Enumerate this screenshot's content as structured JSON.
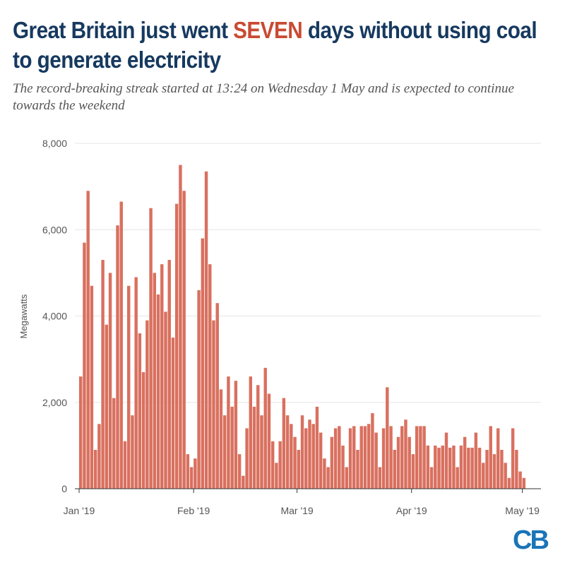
{
  "header": {
    "title_before": "Great Britain just went ",
    "title_highlight": "SEVEN",
    "title_after": " days without using coal to generate electricity",
    "subtitle": "The record-breaking streak started at 13:24 on Wednesday 1 May and is expected to continue towards the weekend"
  },
  "logo": "CB",
  "colors": {
    "bars": "#d9705f",
    "title": "#16395f",
    "highlight": "#c94a32",
    "logo": "#1a74b8",
    "grid": "#e6e6e6"
  },
  "chart_data": {
    "type": "bar",
    "ylabel": "Megawatts",
    "xlabel": "",
    "ylim": [
      0,
      8000
    ],
    "yticks": [
      "0",
      "2,000",
      "4,000",
      "6,000",
      "8,000"
    ],
    "ytick_values": [
      0,
      2000,
      4000,
      6000,
      8000
    ],
    "xlim": [
      "2019-01-01",
      "2019-05-09"
    ],
    "xticks": [
      {
        "date": "2019-01-01",
        "label": "Jan '19"
      },
      {
        "date": "2019-02-01",
        "label": "Feb '19"
      },
      {
        "date": "2019-03-01",
        "label": "Mar '19"
      },
      {
        "date": "2019-04-01",
        "label": "Apr '19"
      },
      {
        "date": "2019-05-01",
        "label": "May '19"
      }
    ],
    "grid": "horizontal",
    "series": [
      {
        "values": [
          [
            "2019-01-01",
            2600
          ],
          [
            "2019-01-02",
            5700
          ],
          [
            "2019-01-03",
            6900
          ],
          [
            "2019-01-04",
            4700
          ],
          [
            "2019-01-05",
            900
          ],
          [
            "2019-01-06",
            1500
          ],
          [
            "2019-01-07",
            5300
          ],
          [
            "2019-01-08",
            3800
          ],
          [
            "2019-01-09",
            5000
          ],
          [
            "2019-01-10",
            2100
          ],
          [
            "2019-01-11",
            6100
          ],
          [
            "2019-01-12",
            6650
          ],
          [
            "2019-01-13",
            1100
          ],
          [
            "2019-01-14",
            4700
          ],
          [
            "2019-01-15",
            1700
          ],
          [
            "2019-01-16",
            4900
          ],
          [
            "2019-01-17",
            3600
          ],
          [
            "2019-01-18",
            2700
          ],
          [
            "2019-01-19",
            3900
          ],
          [
            "2019-01-20",
            6500
          ],
          [
            "2019-01-21",
            5000
          ],
          [
            "2019-01-22",
            4500
          ],
          [
            "2019-01-23",
            5200
          ],
          [
            "2019-01-24",
            4100
          ],
          [
            "2019-01-25",
            5300
          ],
          [
            "2019-01-26",
            3500
          ],
          [
            "2019-01-27",
            6600
          ],
          [
            "2019-01-28",
            7500
          ],
          [
            "2019-01-29",
            6900
          ],
          [
            "2019-01-30",
            800
          ],
          [
            "2019-01-31",
            500
          ],
          [
            "2019-02-01",
            700
          ],
          [
            "2019-02-02",
            4600
          ],
          [
            "2019-02-03",
            5800
          ],
          [
            "2019-02-04",
            7350
          ],
          [
            "2019-02-05",
            5200
          ],
          [
            "2019-02-06",
            3900
          ],
          [
            "2019-02-07",
            4300
          ],
          [
            "2019-02-08",
            2300
          ],
          [
            "2019-02-09",
            1700
          ],
          [
            "2019-02-10",
            2600
          ],
          [
            "2019-02-11",
            1900
          ],
          [
            "2019-02-12",
            2500
          ],
          [
            "2019-02-13",
            800
          ],
          [
            "2019-02-14",
            300
          ],
          [
            "2019-02-15",
            1400
          ],
          [
            "2019-02-16",
            2600
          ],
          [
            "2019-02-17",
            1900
          ],
          [
            "2019-02-18",
            2400
          ],
          [
            "2019-02-19",
            1700
          ],
          [
            "2019-02-20",
            2800
          ],
          [
            "2019-02-21",
            2200
          ],
          [
            "2019-02-22",
            1100
          ],
          [
            "2019-02-23",
            600
          ],
          [
            "2019-02-24",
            1100
          ],
          [
            "2019-02-25",
            2100
          ],
          [
            "2019-02-26",
            1700
          ],
          [
            "2019-02-27",
            1500
          ],
          [
            "2019-02-28",
            1200
          ],
          [
            "2019-03-01",
            900
          ],
          [
            "2019-03-02",
            1700
          ],
          [
            "2019-03-03",
            1400
          ],
          [
            "2019-03-04",
            1600
          ],
          [
            "2019-03-05",
            1500
          ],
          [
            "2019-03-06",
            1900
          ],
          [
            "2019-03-07",
            1300
          ],
          [
            "2019-03-08",
            700
          ],
          [
            "2019-03-09",
            500
          ],
          [
            "2019-03-10",
            1200
          ],
          [
            "2019-03-11",
            1400
          ],
          [
            "2019-03-12",
            1450
          ],
          [
            "2019-03-13",
            1000
          ],
          [
            "2019-03-14",
            500
          ],
          [
            "2019-03-15",
            1400
          ],
          [
            "2019-03-16",
            1450
          ],
          [
            "2019-03-17",
            900
          ],
          [
            "2019-03-18",
            1450
          ],
          [
            "2019-03-19",
            1450
          ],
          [
            "2019-03-20",
            1500
          ],
          [
            "2019-03-21",
            1750
          ],
          [
            "2019-03-22",
            1300
          ],
          [
            "2019-03-23",
            500
          ],
          [
            "2019-03-24",
            1400
          ],
          [
            "2019-03-25",
            2350
          ],
          [
            "2019-03-26",
            1450
          ],
          [
            "2019-03-27",
            900
          ],
          [
            "2019-03-28",
            1200
          ],
          [
            "2019-03-29",
            1450
          ],
          [
            "2019-03-30",
            1600
          ],
          [
            "2019-03-31",
            1200
          ],
          [
            "2019-04-01",
            800
          ],
          [
            "2019-04-02",
            1450
          ],
          [
            "2019-04-03",
            1450
          ],
          [
            "2019-04-04",
            1450
          ],
          [
            "2019-04-05",
            1000
          ],
          [
            "2019-04-06",
            500
          ],
          [
            "2019-04-07",
            1000
          ],
          [
            "2019-04-08",
            950
          ],
          [
            "2019-04-09",
            1000
          ],
          [
            "2019-04-10",
            1300
          ],
          [
            "2019-04-11",
            950
          ],
          [
            "2019-04-12",
            1000
          ],
          [
            "2019-04-13",
            500
          ],
          [
            "2019-04-14",
            1000
          ],
          [
            "2019-04-15",
            1200
          ],
          [
            "2019-04-16",
            950
          ],
          [
            "2019-04-17",
            950
          ],
          [
            "2019-04-18",
            1300
          ],
          [
            "2019-04-19",
            950
          ],
          [
            "2019-04-20",
            600
          ],
          [
            "2019-04-21",
            900
          ],
          [
            "2019-04-22",
            1450
          ],
          [
            "2019-04-23",
            800
          ],
          [
            "2019-04-24",
            1400
          ],
          [
            "2019-04-25",
            900
          ],
          [
            "2019-04-26",
            600
          ],
          [
            "2019-04-27",
            250
          ],
          [
            "2019-04-28",
            1400
          ],
          [
            "2019-04-29",
            900
          ],
          [
            "2019-04-30",
            400
          ],
          [
            "2019-05-01",
            250
          ],
          [
            "2019-05-02",
            0
          ],
          [
            "2019-05-03",
            0
          ],
          [
            "2019-05-04",
            0
          ],
          [
            "2019-05-05",
            0
          ],
          [
            "2019-05-06",
            0
          ],
          [
            "2019-05-07",
            0
          ],
          [
            "2019-05-08",
            0
          ]
        ]
      }
    ]
  }
}
